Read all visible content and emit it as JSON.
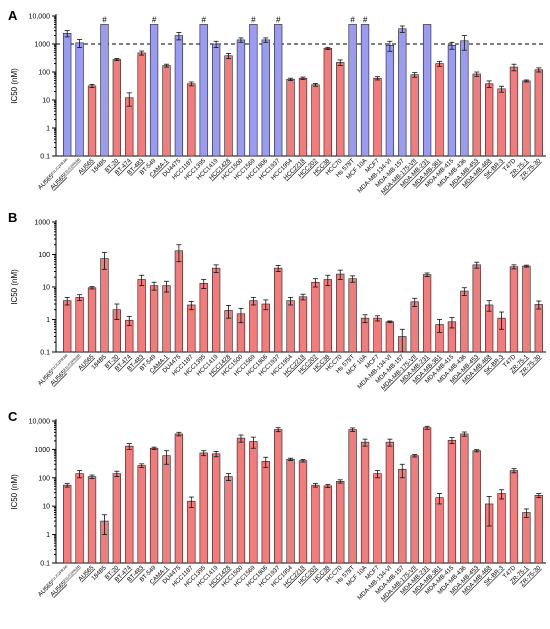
{
  "colors": {
    "red": "#f27c7c",
    "blue": "#9a9cf2"
  },
  "categories": [
    "AU565",
    "AU565",
    "AU565",
    "184B5",
    "BT-20",
    "BT-474",
    "BT-483",
    "BT-549",
    "CAMA-1",
    "DU4475",
    "HCC1187",
    "HCC1395",
    "HCC1419",
    "HCC1428",
    "HCC1500",
    "HCC1569",
    "HCC1806",
    "HCC1937",
    "HCC1954",
    "HCC2218",
    "HCC202",
    "HCC38",
    "HCC70",
    "Hs 578T",
    "MCF 10A",
    "MCF7",
    "MDA-MB-134-VI",
    "MDA-MB-157",
    "MDA-MB-175-VII",
    "MDA-MB-231",
    "MDA-MB-361",
    "MDA-MB-415",
    "MDA-MB-436",
    "MDA-MB-453",
    "MDA-MB-468",
    "SK-BR-3",
    "T47D",
    "ZR-75-1",
    "ZR-75-30"
  ],
  "cat_superscripts": [
    "E1L/C2PR34I",
    "E1L/C2PR34I",
    "",
    "",
    "",
    "",
    "",
    "",
    "",
    "",
    "",
    "",
    "",
    "",
    "",
    "",
    "",
    "",
    "",
    "",
    "",
    "",
    "",
    "",
    "",
    "",
    "",
    "",
    "",
    "",
    "",
    "",
    "",
    "",
    "",
    "",
    "",
    "",
    ""
  ],
  "underlined": [
    false,
    true,
    true,
    false,
    true,
    true,
    true,
    false,
    true,
    false,
    false,
    false,
    false,
    true,
    false,
    false,
    false,
    false,
    false,
    true,
    true,
    true,
    false,
    false,
    false,
    false,
    false,
    false,
    true,
    true,
    true,
    false,
    false,
    true,
    true,
    true,
    false,
    true,
    true
  ],
  "chart_data": [
    {
      "type": "bar",
      "panel": "A",
      "ylabel": "IC50 (nM)",
      "yscale": "log",
      "ylim": [
        0.1,
        10000
      ],
      "yticks": [
        "0.1",
        "1",
        "10",
        "100",
        "1000",
        "10,000"
      ],
      "threshold": 1000,
      "values": [
        2400,
        1100,
        32,
        5000,
        280,
        12,
        480,
        5000,
        170,
        2000,
        38,
        5000,
        1000,
        380,
        1400,
        5000,
        1400,
        5000,
        55,
        60,
        35,
        700,
        220,
        5000,
        5000,
        60,
        900,
        3500,
        80,
        5000,
        200,
        900,
        1300,
        85,
        38,
        25,
        150,
        48,
        120
      ],
      "errors": [
        600,
        350,
        4,
        0,
        25,
        6,
        80,
        0,
        20,
        600,
        6,
        0,
        250,
        80,
        250,
        0,
        250,
        0,
        5,
        6,
        4,
        60,
        50,
        0,
        0,
        8,
        350,
        900,
        15,
        0,
        40,
        250,
        700,
        15,
        10,
        6,
        40,
        4,
        20
      ],
      "blue": [
        true,
        true,
        false,
        true,
        false,
        false,
        false,
        true,
        false,
        true,
        false,
        true,
        true,
        false,
        true,
        true,
        true,
        true,
        false,
        false,
        false,
        false,
        false,
        true,
        true,
        false,
        true,
        true,
        false,
        true,
        false,
        true,
        true,
        false,
        false,
        false,
        false,
        false,
        false
      ],
      "hash": [
        false,
        false,
        false,
        true,
        false,
        false,
        false,
        true,
        false,
        false,
        false,
        true,
        false,
        false,
        false,
        true,
        false,
        true,
        false,
        false,
        false,
        false,
        false,
        true,
        true,
        false,
        false,
        false,
        false,
        false,
        false,
        false,
        false,
        false,
        false,
        false,
        false,
        false,
        false
      ]
    },
    {
      "type": "bar",
      "panel": "B",
      "ylabel": "IC50 (nM)",
      "yscale": "log",
      "ylim": [
        0.1,
        1000
      ],
      "yticks": [
        "0.1",
        "1",
        "10",
        "100",
        "1000"
      ],
      "values": [
        3.8,
        4.8,
        9.5,
        75,
        2,
        0.95,
        17,
        11,
        11,
        130,
        2.8,
        13,
        38,
        1.9,
        1.5,
        3.8,
        3,
        38,
        3.8,
        5,
        14,
        17,
        25,
        18,
        1.1,
        1.1,
        0.85,
        0.3,
        3.5,
        24,
        0.7,
        0.85,
        7.5,
        48,
        2.8,
        1.1,
        42,
        44,
        2.9
      ],
      "errors": [
        1.0,
        1.0,
        0.8,
        40,
        1.0,
        0.3,
        6,
        3,
        4,
        70,
        0.8,
        4,
        10,
        0.8,
        0.7,
        1.0,
        1.0,
        8,
        1.0,
        1.0,
        4,
        6,
        8,
        4,
        0.3,
        0.2,
        0.05,
        0.2,
        1.0,
        3,
        0.3,
        0.3,
        2,
        10,
        1.0,
        0.6,
        6,
        3,
        0.8
      ]
    },
    {
      "type": "bar",
      "panel": "C",
      "ylabel": "IC50 (nM)",
      "yscale": "log",
      "ylim": [
        0.1,
        10000
      ],
      "yticks": [
        "0.1",
        "1",
        "10",
        "100",
        "1000",
        "10,000"
      ],
      "values": [
        55,
        140,
        110,
        3,
        140,
        1300,
        270,
        1100,
        600,
        3500,
        15,
        750,
        700,
        110,
        2500,
        1900,
        380,
        5000,
        450,
        400,
        55,
        52,
        75,
        5000,
        1800,
        140,
        1800,
        200,
        600,
        5800,
        20,
        2100,
        3500,
        900,
        12,
        28,
        180,
        6,
        24
      ],
      "errors": [
        8,
        40,
        15,
        2,
        30,
        300,
        40,
        100,
        300,
        500,
        6,
        150,
        150,
        30,
        700,
        800,
        150,
        800,
        40,
        40,
        8,
        6,
        10,
        700,
        500,
        40,
        500,
        100,
        60,
        700,
        8,
        500,
        600,
        80,
        10,
        10,
        30,
        2,
        4
      ]
    }
  ]
}
